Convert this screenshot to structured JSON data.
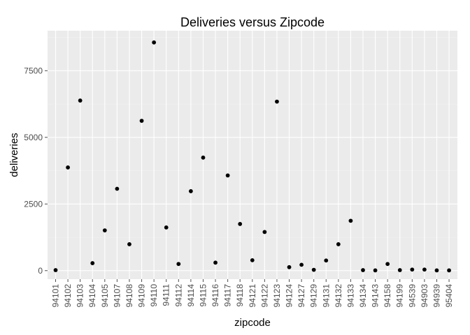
{
  "chart_data": {
    "type": "scatter",
    "title": "Deliveries versus Zipcode",
    "xlabel": "zipcode",
    "ylabel": "deliveries",
    "categories": [
      "94101",
      "94102",
      "94103",
      "94104",
      "94105",
      "94107",
      "94108",
      "94109",
      "94110",
      "94111",
      "94112",
      "94114",
      "94115",
      "94116",
      "94117",
      "94118",
      "94121",
      "94122",
      "94123",
      "94124",
      "94127",
      "94129",
      "94131",
      "94132",
      "94133",
      "94134",
      "94143",
      "94158",
      "94199",
      "94539",
      "94903",
      "94939",
      "95404"
    ],
    "values": [
      20,
      3870,
      6380,
      280,
      1510,
      3070,
      990,
      5620,
      8560,
      1620,
      250,
      2980,
      4240,
      300,
      3570,
      1750,
      390,
      1450,
      6340,
      130,
      220,
      30,
      380,
      990,
      1870,
      20,
      10,
      250,
      20,
      40,
      40,
      10,
      10
    ],
    "ylim": [
      -320,
      9000
    ],
    "yticks": [
      0,
      2500,
      5000,
      7500
    ],
    "ytick_labels": [
      "0",
      "2500",
      "5000",
      "7500"
    ],
    "grid": true,
    "colors": {
      "panel": "#ebebeb",
      "grid": "#ffffff",
      "point": "#000000",
      "tick_text": "#4d4d4d"
    }
  }
}
